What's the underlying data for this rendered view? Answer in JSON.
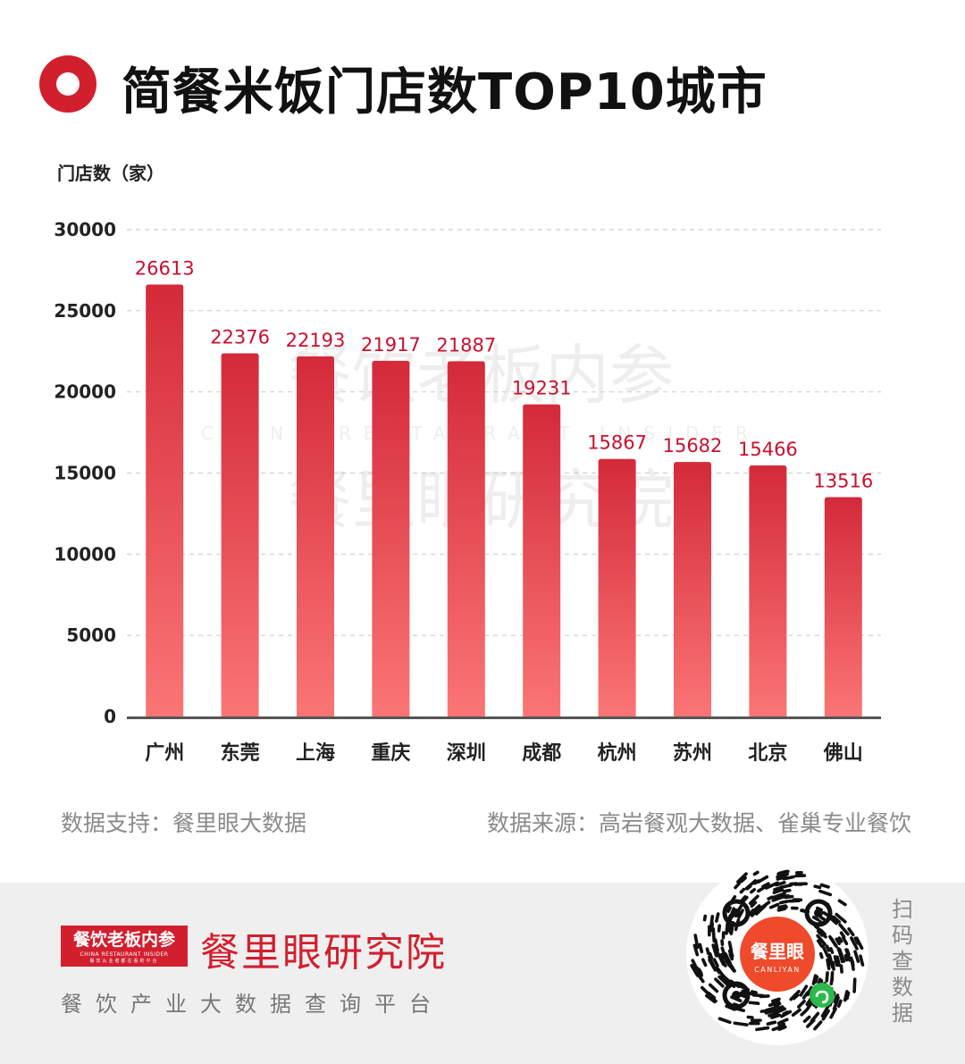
{
  "header": {
    "title": "简餐米饭门店数TOP10城市"
  },
  "colors": {
    "accent": "#d21f2e",
    "bar_top": "#d42a3a",
    "bar_bottom": "#fb7575",
    "value_label": "#c8102e"
  },
  "chart_data": {
    "type": "bar",
    "title": "简餐米饭门店数TOP10城市",
    "ylabel": "门店数（家）",
    "xlabel": "",
    "categories": [
      "广州",
      "东莞",
      "上海",
      "重庆",
      "深圳",
      "成都",
      "杭州",
      "苏州",
      "北京",
      "佛山"
    ],
    "values": [
      26613,
      22376,
      22193,
      21917,
      21887,
      19231,
      15867,
      15682,
      15466,
      13516
    ],
    "ylim": [
      0,
      30000
    ],
    "yticks": [
      "0",
      "5000",
      "10000",
      "15000",
      "20000",
      "25000",
      "30000"
    ],
    "grid": true,
    "legend": "none"
  },
  "watermark": {
    "line1": "餐饮老板内参",
    "line2": "CHINA RESTAURANT INSIDER",
    "line3": "餐里眼研究院"
  },
  "footer": {
    "support": "数据支持：餐里眼大数据",
    "source": "数据来源：高岩餐观大数据、雀巢专业餐饮"
  },
  "brand": {
    "logo_cn": "餐饮老板内参",
    "logo_en": "CHINA RESTAURANT INSIDER",
    "logo_sub": "餐饮从业者都在看的平台",
    "name": "餐里眼研究院",
    "slogan": "餐饮产业大数据查询平台",
    "qr_cn": "餐里眼",
    "qr_en": "CANLIYAN",
    "qr_caption": "扫码查数据",
    "qr_icon": "mini-program-icon"
  }
}
